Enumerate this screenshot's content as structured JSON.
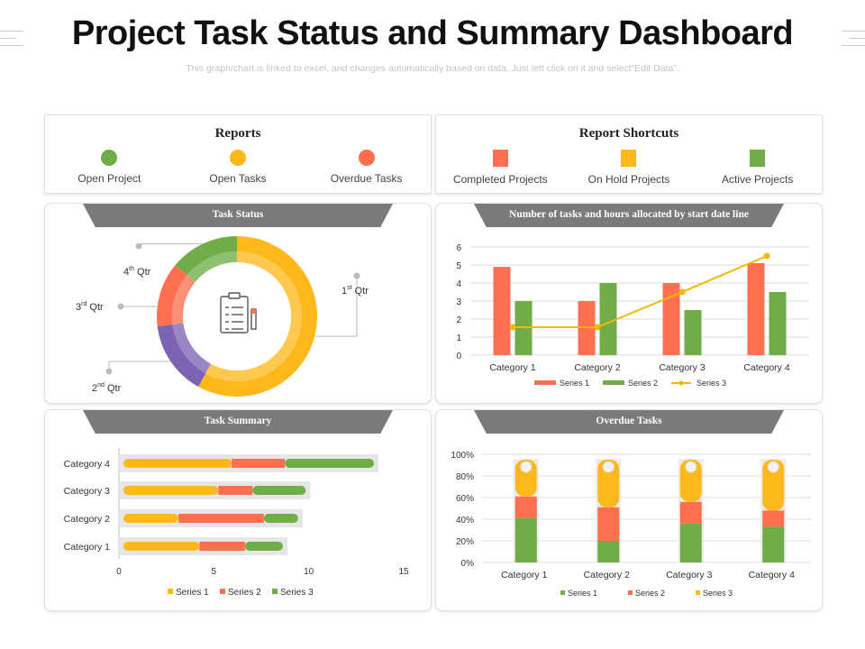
{
  "header": {
    "title": "Project Task Status and Summary Dashboard",
    "subtitle": "This graph/chart is linked to excel, and changes automatically based on data. Just left click on it and select“Edit Data”."
  },
  "reports": {
    "title": "Reports",
    "items": [
      {
        "label": "Open Project",
        "color": "#70ad47"
      },
      {
        "label": "Open Tasks",
        "color": "#ffb81c"
      },
      {
        "label": "Overdue Tasks",
        "color": "#ff6f50"
      }
    ]
  },
  "shortcuts": {
    "title": "Report Shortcuts",
    "items": [
      {
        "label": "Completed Projects",
        "color": "#ff6f50"
      },
      {
        "label": "On Hold Projects",
        "color": "#ffb81c"
      },
      {
        "label": "Active  Projects",
        "color": "#70ad47"
      }
    ]
  },
  "panels": {
    "task_status": "Task Status",
    "tasks_hours": "Number of tasks and hours allocated by start date line",
    "task_summary": "Task Summary",
    "overdue": "Overdue Tasks"
  },
  "icons": {
    "center": "clipboard-checklist-icon"
  },
  "chart_data": [
    {
      "id": "task-status",
      "type": "pie",
      "style": "doughnut",
      "slices": [
        {
          "label": "1st Qtr",
          "num": "1",
          "sup": "st",
          "value": 58,
          "color": "#ffb81c"
        },
        {
          "label": "2nd Qtr",
          "num": "2",
          "sup": "nd",
          "value": 15,
          "color": "#7b65b3"
        },
        {
          "label": "3rd Qtr",
          "num": "3",
          "sup": "rd",
          "value": 13,
          "color": "#ff6f50"
        },
        {
          "label": "4th Qtr",
          "num": "4",
          "sup": "th",
          "value": 14,
          "color": "#70ad47"
        }
      ]
    },
    {
      "id": "tasks-hours",
      "type": "bar",
      "categories": [
        "Category 1",
        "Category 2",
        "Category 3",
        "Category 4"
      ],
      "series": [
        {
          "name": "Series 1",
          "type": "bar",
          "color": "#ff6f50",
          "values": [
            4.9,
            3.0,
            4.0,
            5.1
          ]
        },
        {
          "name": "Series 2",
          "type": "bar",
          "color": "#70ad47",
          "values": [
            3.0,
            4.0,
            2.5,
            3.5
          ]
        },
        {
          "name": "Series 3",
          "type": "line",
          "color": "#f4b800",
          "values": [
            1.55,
            1.55,
            3.5,
            5.5
          ]
        }
      ],
      "ylim": [
        0,
        6
      ],
      "yticks": [
        0,
        1,
        2,
        3,
        4,
        5,
        6
      ],
      "grid": true,
      "legend": "bottom"
    },
    {
      "id": "task-summary",
      "type": "bar",
      "orientation": "horizontal",
      "stacked": true,
      "categories": [
        "Category 1",
        "Category 2",
        "Category 3",
        "Category 4"
      ],
      "series": [
        {
          "name": "Series 1",
          "color": "#ffb81c",
          "values": [
            4.0,
            2.9,
            5.0,
            5.7
          ]
        },
        {
          "name": "Series 2",
          "color": "#ff6f50",
          "values": [
            2.4,
            4.5,
            1.8,
            2.8
          ]
        },
        {
          "name": "Series 3",
          "color": "#70ad47",
          "values": [
            2.0,
            1.8,
            2.8,
            4.7
          ]
        }
      ],
      "xlim": [
        0,
        15
      ],
      "xticks": [
        0,
        5,
        10,
        15
      ],
      "legend": "bottom"
    },
    {
      "id": "overdue-tasks",
      "type": "bar",
      "stacked": true,
      "percent": true,
      "categories": [
        "Category 1",
        "Category 2",
        "Category 3",
        "Category 4"
      ],
      "series": [
        {
          "name": "Series 1",
          "color": "#70ad47",
          "values": [
            41,
            20,
            36,
            33
          ]
        },
        {
          "name": "Series 2",
          "color": "#ff6f50",
          "values": [
            20,
            31,
            20,
            15
          ]
        },
        {
          "name": "Series 3",
          "color": "#ffb81c",
          "values": [
            39,
            49,
            44,
            52
          ]
        }
      ],
      "yticks": [
        "0%",
        "20%",
        "40%",
        "60%",
        "80%",
        "100%"
      ],
      "grid": true,
      "legend": "bottom"
    }
  ]
}
